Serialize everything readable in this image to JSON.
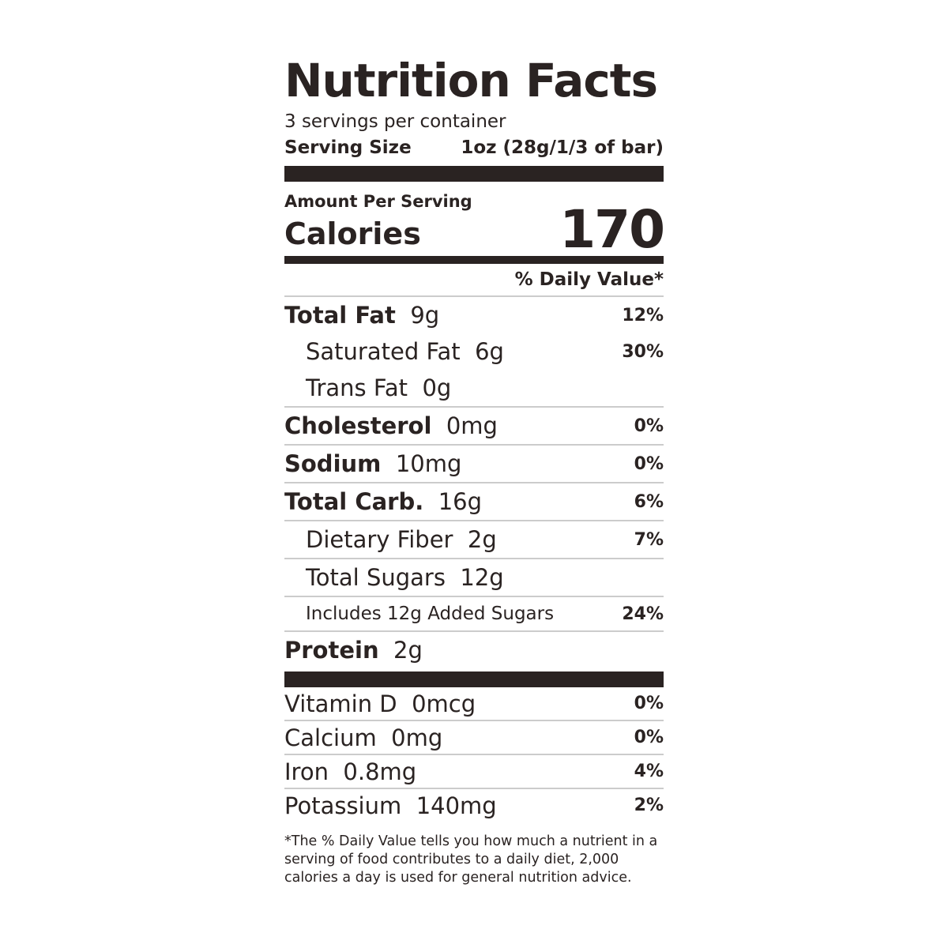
{
  "title": "Nutrition Facts",
  "servings": "3 servings per container",
  "serving_size_label": "Serving Size",
  "serving_size_value": "1oz (28g/1/3 of bar)",
  "amount_per_serving": "Amount Per Serving",
  "calories_label": "Calories",
  "calories_value": "170",
  "daily_value_header": "% Daily Value*",
  "nutrients": [
    {
      "name": "Total Fat",
      "amount": "9g",
      "dv": "12%"
    },
    {
      "name": "Saturated Fat",
      "amount": "6g",
      "dv": "30%"
    },
    {
      "name": "Trans Fat",
      "amount": "0g",
      "dv": ""
    },
    {
      "name": "Cholesterol",
      "amount": "0mg",
      "dv": "0%"
    },
    {
      "name": "Sodium",
      "amount": "10mg",
      "dv": "0%"
    },
    {
      "name": "Total Carb.",
      "amount": "16g",
      "dv": "6%"
    },
    {
      "name": "Dietary Fiber",
      "amount": "2g",
      "dv": "7%"
    },
    {
      "name": "Total Sugars",
      "amount": "12g",
      "dv": ""
    },
    {
      "name": "Includes 12g Added Sugars",
      "amount": "",
      "dv": "24%"
    },
    {
      "name": "Protein",
      "amount": "2g",
      "dv": ""
    }
  ],
  "vitamins": [
    {
      "name": "Vitamin D",
      "amount": "0mcg",
      "dv": "0%"
    },
    {
      "name": "Calcium",
      "amount": "0mg",
      "dv": "0%"
    },
    {
      "name": "Iron",
      "amount": "0.8mg",
      "dv": "4%"
    },
    {
      "name": "Potassium",
      "amount": "140mg",
      "dv": "2%"
    }
  ],
  "footnote": "*The % Daily Value tells you how much a nutrient in a serving of food contributes to a daily diet, 2,000 calories a day is used for general nutrition advice."
}
